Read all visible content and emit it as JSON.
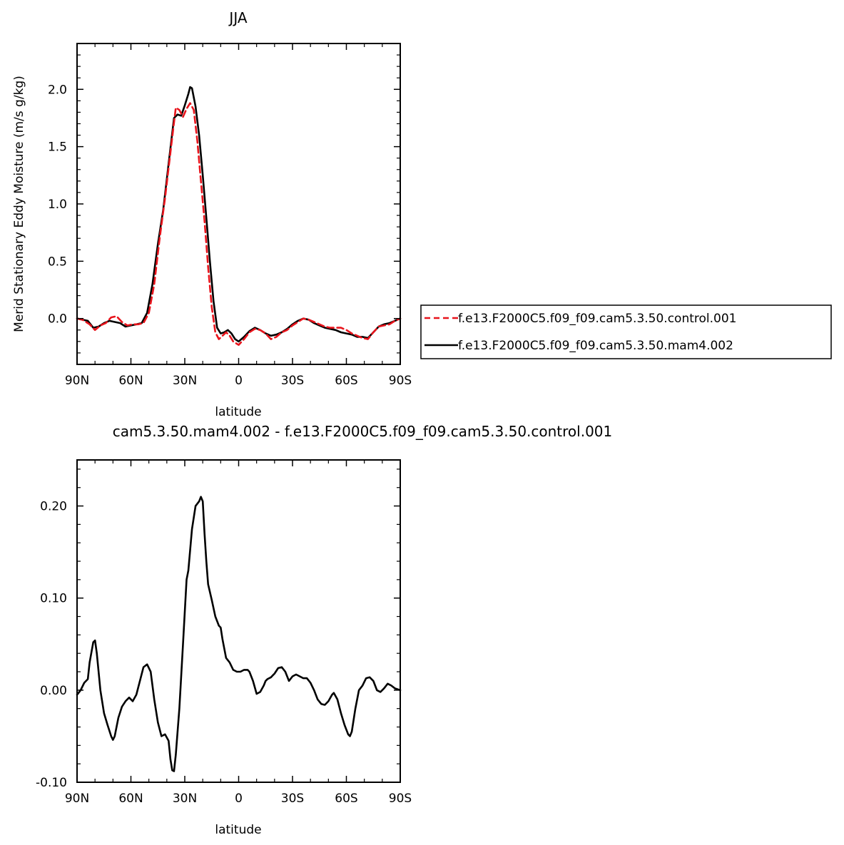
{
  "chart_data": [
    {
      "type": "line",
      "title": "JJA",
      "xlabel": "latitude",
      "ylabel": "Merid Stationary Eddy Moisture (m/s g/kg)",
      "xlim": [
        90,
        -90
      ],
      "ylim": [
        -0.4,
        2.4
      ],
      "xticks": [
        90,
        60,
        30,
        0,
        -30,
        -60,
        -90
      ],
      "xtick_labels": [
        "90N",
        "60N",
        "30N",
        "0",
        "30S",
        "60S",
        "90S"
      ],
      "yticks": [
        0.0,
        0.5,
        1.0,
        1.5,
        2.0
      ],
      "ytick_labels": [
        "0.0",
        "0.5",
        "1.0",
        "1.5",
        "2.0"
      ],
      "legend": "right",
      "series": [
        {
          "name": "f.e13.F2000C5.f09_f09.cam5.3.50.control.001",
          "color": "#e8141c",
          "dash": "dashed",
          "points": [
            [
              90,
              0.0
            ],
            [
              87,
              -0.01
            ],
            [
              83,
              -0.05
            ],
            [
              80,
              -0.1
            ],
            [
              77,
              -0.06
            ],
            [
              74,
              -0.04
            ],
            [
              71,
              0.01
            ],
            [
              68,
              0.02
            ],
            [
              65,
              -0.03
            ],
            [
              62,
              -0.06
            ],
            [
              59,
              -0.05
            ],
            [
              56,
              -0.05
            ],
            [
              53,
              -0.04
            ],
            [
              50,
              0.05
            ],
            [
              47,
              0.3
            ],
            [
              44,
              0.7
            ],
            [
              41,
              1.05
            ],
            [
              38,
              1.45
            ],
            [
              35,
              1.84
            ],
            [
              33,
              1.82
            ],
            [
              31,
              1.76
            ],
            [
              29,
              1.83
            ],
            [
              27,
              1.88
            ],
            [
              25,
              1.82
            ],
            [
              23,
              1.55
            ],
            [
              21,
              1.2
            ],
            [
              19,
              0.85
            ],
            [
              17,
              0.45
            ],
            [
              15,
              0.1
            ],
            [
              13,
              -0.12
            ],
            [
              11,
              -0.18
            ],
            [
              9,
              -0.15
            ],
            [
              7,
              -0.12
            ],
            [
              5,
              -0.15
            ],
            [
              3,
              -0.2
            ],
            [
              0,
              -0.23
            ],
            [
              -3,
              -0.18
            ],
            [
              -6,
              -0.12
            ],
            [
              -9,
              -0.09
            ],
            [
              -12,
              -0.1
            ],
            [
              -15,
              -0.13
            ],
            [
              -18,
              -0.18
            ],
            [
              -21,
              -0.16
            ],
            [
              -24,
              -0.12
            ],
            [
              -27,
              -0.1
            ],
            [
              -30,
              -0.06
            ],
            [
              -33,
              -0.03
            ],
            [
              -36,
              0.0
            ],
            [
              -39,
              -0.01
            ],
            [
              -42,
              -0.03
            ],
            [
              -45,
              -0.05
            ],
            [
              -48,
              -0.07
            ],
            [
              -51,
              -0.08
            ],
            [
              -54,
              -0.08
            ],
            [
              -57,
              -0.08
            ],
            [
              -60,
              -0.1
            ],
            [
              -63,
              -0.13
            ],
            [
              -66,
              -0.15
            ],
            [
              -69,
              -0.17
            ],
            [
              -72,
              -0.18
            ],
            [
              -75,
              -0.12
            ],
            [
              -78,
              -0.07
            ],
            [
              -81,
              -0.06
            ],
            [
              -84,
              -0.05
            ],
            [
              -87,
              -0.02
            ],
            [
              -90,
              0.0
            ]
          ]
        },
        {
          "name": "f.e13.F2000C5.f09_f09.cam5.3.50.mam4.002",
          "color": "#000000",
          "dash": "solid",
          "points": [
            [
              90,
              0.0
            ],
            [
              87,
              -0.01
            ],
            [
              84,
              -0.02
            ],
            [
              81,
              -0.08
            ],
            [
              78,
              -0.07
            ],
            [
              75,
              -0.04
            ],
            [
              72,
              -0.02
            ],
            [
              69,
              -0.03
            ],
            [
              66,
              -0.04
            ],
            [
              63,
              -0.07
            ],
            [
              60,
              -0.06
            ],
            [
              57,
              -0.05
            ],
            [
              54,
              -0.04
            ],
            [
              51,
              0.05
            ],
            [
              48,
              0.3
            ],
            [
              45,
              0.65
            ],
            [
              42,
              0.95
            ],
            [
              39,
              1.35
            ],
            [
              36,
              1.75
            ],
            [
              34,
              1.78
            ],
            [
              32,
              1.77
            ],
            [
              30,
              1.86
            ],
            [
              28,
              1.96
            ],
            [
              27,
              2.02
            ],
            [
              26,
              2.01
            ],
            [
              24,
              1.85
            ],
            [
              22,
              1.6
            ],
            [
              20,
              1.25
            ],
            [
              18,
              0.88
            ],
            [
              16,
              0.5
            ],
            [
              14,
              0.15
            ],
            [
              12,
              -0.08
            ],
            [
              10,
              -0.13
            ],
            [
              8,
              -0.12
            ],
            [
              6,
              -0.1
            ],
            [
              4,
              -0.13
            ],
            [
              2,
              -0.18
            ],
            [
              0,
              -0.2
            ],
            [
              -3,
              -0.16
            ],
            [
              -6,
              -0.11
            ],
            [
              -9,
              -0.08
            ],
            [
              -12,
              -0.1
            ],
            [
              -15,
              -0.13
            ],
            [
              -18,
              -0.15
            ],
            [
              -21,
              -0.14
            ],
            [
              -24,
              -0.12
            ],
            [
              -27,
              -0.09
            ],
            [
              -30,
              -0.05
            ],
            [
              -33,
              -0.02
            ],
            [
              -36,
              0.0
            ],
            [
              -39,
              -0.01
            ],
            [
              -42,
              -0.04
            ],
            [
              -45,
              -0.06
            ],
            [
              -48,
              -0.08
            ],
            [
              -51,
              -0.09
            ],
            [
              -54,
              -0.1
            ],
            [
              -57,
              -0.12
            ],
            [
              -60,
              -0.13
            ],
            [
              -63,
              -0.14
            ],
            [
              -66,
              -0.16
            ],
            [
              -69,
              -0.16
            ],
            [
              -72,
              -0.17
            ],
            [
              -75,
              -0.12
            ],
            [
              -78,
              -0.07
            ],
            [
              -81,
              -0.05
            ],
            [
              -84,
              -0.04
            ],
            [
              -87,
              -0.02
            ],
            [
              -90,
              0.0
            ]
          ]
        }
      ]
    },
    {
      "type": "line",
      "title": "cam5.3.50.mam4.002 - f.e13.F2000C5.f09_f09.cam5.3.50.control.001",
      "xlabel": "latitude",
      "ylabel": "",
      "xlim": [
        90,
        -90
      ],
      "ylim": [
        -0.1,
        0.25
      ],
      "xticks": [
        90,
        60,
        30,
        0,
        -30,
        -60,
        -90
      ],
      "xtick_labels": [
        "90N",
        "60N",
        "30N",
        "0",
        "30S",
        "60S",
        "90S"
      ],
      "yticks": [
        -0.1,
        0.0,
        0.1,
        0.2
      ],
      "ytick_labels": [
        "-0.10",
        "0.00",
        "0.10",
        "0.20"
      ],
      "series": [
        {
          "name": "",
          "color": "#000000",
          "dash": "solid",
          "points": [
            [
              90,
              -0.005
            ],
            [
              88,
              0.0
            ],
            [
              86,
              0.008
            ],
            [
              84,
              0.012
            ],
            [
              83,
              0.03
            ],
            [
              81,
              0.052
            ],
            [
              80,
              0.054
            ],
            [
              79,
              0.04
            ],
            [
              77,
              0.0
            ],
            [
              75,
              -0.025
            ],
            [
              73,
              -0.038
            ],
            [
              71,
              -0.05
            ],
            [
              70,
              -0.054
            ],
            [
              69,
              -0.05
            ],
            [
              67,
              -0.03
            ],
            [
              65,
              -0.018
            ],
            [
              63,
              -0.012
            ],
            [
              61,
              -0.008
            ],
            [
              59,
              -0.012
            ],
            [
              57,
              -0.005
            ],
            [
              55,
              0.01
            ],
            [
              53,
              0.025
            ],
            [
              51,
              0.028
            ],
            [
              49,
              0.02
            ],
            [
              47,
              -0.01
            ],
            [
              45,
              -0.035
            ],
            [
              43,
              -0.05
            ],
            [
              41,
              -0.048
            ],
            [
              39,
              -0.055
            ],
            [
              38,
              -0.075
            ],
            [
              37,
              -0.087
            ],
            [
              36,
              -0.088
            ],
            [
              35,
              -0.07
            ],
            [
              33,
              -0.02
            ],
            [
              31,
              0.05
            ],
            [
              29,
              0.12
            ],
            [
              28,
              0.13
            ],
            [
              26,
              0.175
            ],
            [
              24,
              0.2
            ],
            [
              22,
              0.205
            ],
            [
              21,
              0.21
            ],
            [
              20,
              0.205
            ],
            [
              19,
              0.17
            ],
            [
              18,
              0.14
            ],
            [
              17,
              0.115
            ],
            [
              15,
              0.098
            ],
            [
              13,
              0.08
            ],
            [
              11,
              0.07
            ],
            [
              10,
              0.068
            ],
            [
              9,
              0.055
            ],
            [
              8,
              0.045
            ],
            [
              7,
              0.035
            ],
            [
              5,
              0.03
            ],
            [
              3,
              0.022
            ],
            [
              1,
              0.02
            ],
            [
              -1,
              0.02
            ],
            [
              -3,
              0.022
            ],
            [
              -5,
              0.022
            ],
            [
              -6,
              0.02
            ],
            [
              -8,
              0.01
            ],
            [
              -10,
              -0.004
            ],
            [
              -12,
              -0.002
            ],
            [
              -14,
              0.005
            ],
            [
              -15,
              0.01
            ],
            [
              -16,
              0.012
            ],
            [
              -18,
              0.014
            ],
            [
              -20,
              0.018
            ],
            [
              -22,
              0.024
            ],
            [
              -24,
              0.025
            ],
            [
              -26,
              0.02
            ],
            [
              -28,
              0.01
            ],
            [
              -30,
              0.015
            ],
            [
              -32,
              0.017
            ],
            [
              -34,
              0.015
            ],
            [
              -36,
              0.013
            ],
            [
              -38,
              0.013
            ],
            [
              -40,
              0.008
            ],
            [
              -42,
              0.0
            ],
            [
              -44,
              -0.01
            ],
            [
              -46,
              -0.015
            ],
            [
              -48,
              -0.016
            ],
            [
              -50,
              -0.012
            ],
            [
              -52,
              -0.005
            ],
            [
              -53,
              -0.003
            ],
            [
              -55,
              -0.01
            ],
            [
              -57,
              -0.025
            ],
            [
              -59,
              -0.038
            ],
            [
              -61,
              -0.048
            ],
            [
              -62,
              -0.05
            ],
            [
              -63,
              -0.045
            ],
            [
              -65,
              -0.02
            ],
            [
              -67,
              0.0
            ],
            [
              -69,
              0.005
            ],
            [
              -71,
              0.013
            ],
            [
              -73,
              0.014
            ],
            [
              -75,
              0.01
            ],
            [
              -77,
              0.0
            ],
            [
              -79,
              -0.002
            ],
            [
              -81,
              0.002
            ],
            [
              -83,
              0.007
            ],
            [
              -85,
              0.005
            ],
            [
              -87,
              0.002
            ],
            [
              -90,
              0.0
            ]
          ]
        }
      ]
    }
  ]
}
